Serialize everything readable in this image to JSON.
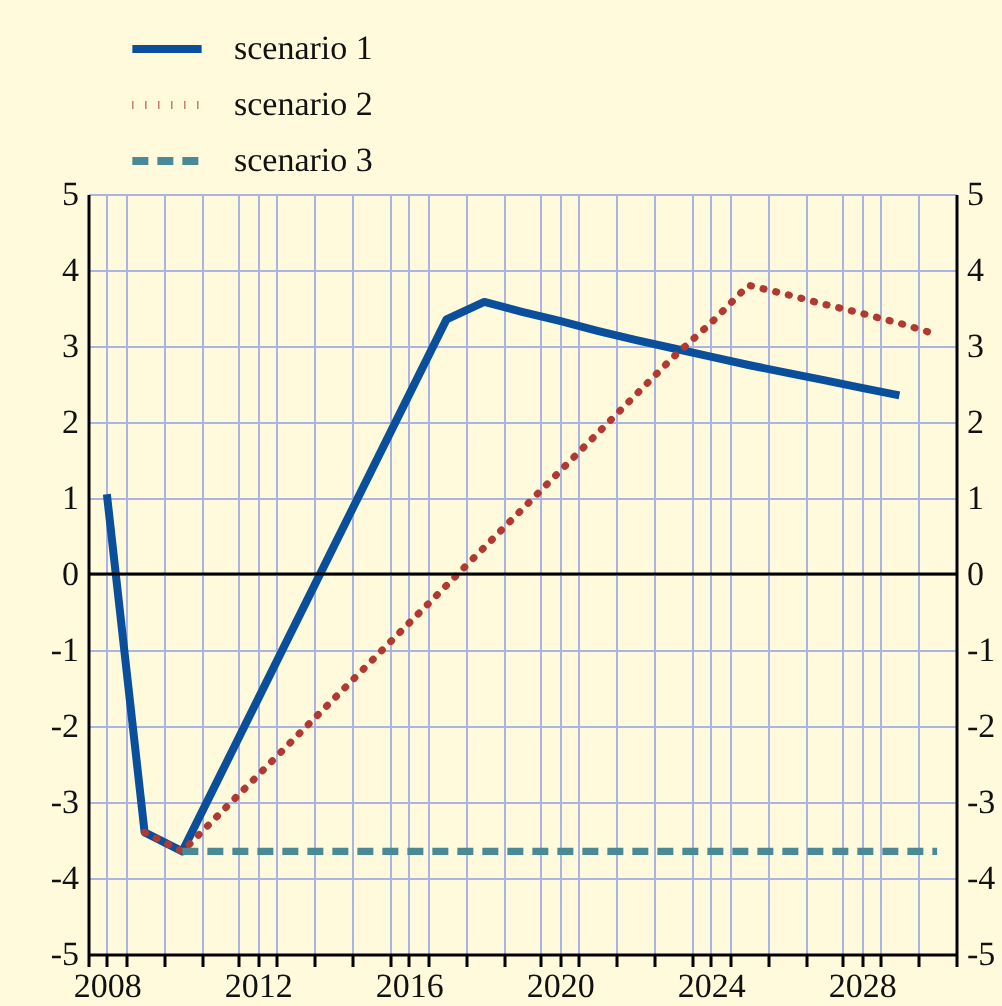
{
  "chart_data": {
    "type": "line",
    "x": [
      2008,
      2009,
      2010,
      2011,
      2012,
      2013,
      2014,
      2015,
      2016,
      2017,
      2018,
      2019,
      2020,
      2021,
      2022,
      2023,
      2024,
      2025,
      2026,
      2027,
      2028,
      2029,
      2030
    ],
    "series": [
      {
        "name": "scenario 1",
        "color": "#0a4f9c",
        "line_style": "solid",
        "values": [
          1.05,
          -3.4,
          -3.65,
          -2.65,
          -1.65,
          -0.65,
          0.35,
          1.35,
          2.35,
          3.35,
          3.58,
          3.45,
          3.33,
          3.2,
          3.08,
          2.97,
          2.86,
          2.75,
          2.65,
          2.55,
          2.45,
          2.35,
          null
        ]
      },
      {
        "name": "scenario 2",
        "color": "#b03a32",
        "line_style": "dotted",
        "values": [
          null,
          -3.4,
          -3.65,
          -3.15,
          -2.65,
          -2.15,
          -1.65,
          -1.15,
          -0.65,
          -0.15,
          0.35,
          0.85,
          1.35,
          1.85,
          2.35,
          2.85,
          3.3,
          3.8,
          3.68,
          3.55,
          3.43,
          3.3,
          3.15
        ]
      },
      {
        "name": "scenario 3",
        "color": "#4a8a96",
        "line_style": "dashed",
        "values": [
          null,
          null,
          -3.65,
          -3.65,
          -3.65,
          -3.65,
          -3.65,
          -3.65,
          -3.65,
          -3.65,
          -3.65,
          -3.65,
          -3.65,
          -3.65,
          -3.65,
          -3.65,
          -3.65,
          -3.65,
          -3.65,
          -3.65,
          -3.65,
          -3.65,
          -3.65
        ]
      }
    ],
    "xlim": [
      2007.5,
      2030.5
    ],
    "xticks": [
      {
        "value": 2007.5,
        "label": null
      },
      2008,
      {
        "value": 2008.5,
        "label": null
      },
      {
        "value": 2009.5,
        "label": null
      },
      {
        "value": 2010.5,
        "label": null
      },
      {
        "value": 2011.5,
        "label": null
      },
      2012,
      {
        "value": 2012.5,
        "label": null
      },
      {
        "value": 2013.5,
        "label": null
      },
      {
        "value": 2014.5,
        "label": null
      },
      {
        "value": 2015.5,
        "label": null
      },
      2016,
      {
        "value": 2016.5,
        "label": null
      },
      {
        "value": 2017.5,
        "label": null
      },
      {
        "value": 2018.5,
        "label": null
      },
      {
        "value": 2019.5,
        "label": null
      },
      2020,
      {
        "value": 2020.5,
        "label": null
      },
      {
        "value": 2021.5,
        "label": null
      },
      {
        "value": 2022.5,
        "label": null
      },
      {
        "value": 2023.5,
        "label": null
      },
      2024,
      {
        "value": 2024.5,
        "label": null
      },
      {
        "value": 2025.5,
        "label": null
      },
      {
        "value": 2026.5,
        "label": null
      },
      {
        "value": 2027.5,
        "label": null
      },
      2028,
      {
        "value": 2028.5,
        "label": null
      },
      {
        "value": 2029.5,
        "label": null
      },
      {
        "value": 2030.5,
        "label": null
      }
    ],
    "ylim": [
      -5,
      5
    ],
    "yticks": [
      -5,
      -4,
      -3,
      -2,
      -1,
      0,
      1,
      2,
      3,
      4,
      5
    ],
    "y2lim": [
      -5,
      5
    ],
    "y2ticks": [
      -5,
      -4,
      -3,
      -2,
      -1,
      0,
      1,
      2,
      3,
      4,
      5
    ],
    "ref_lines": [
      {
        "axis": "y",
        "value": 0,
        "color": "#000000"
      }
    ],
    "grid": true,
    "legend": "top left",
    "marker": "none"
  }
}
